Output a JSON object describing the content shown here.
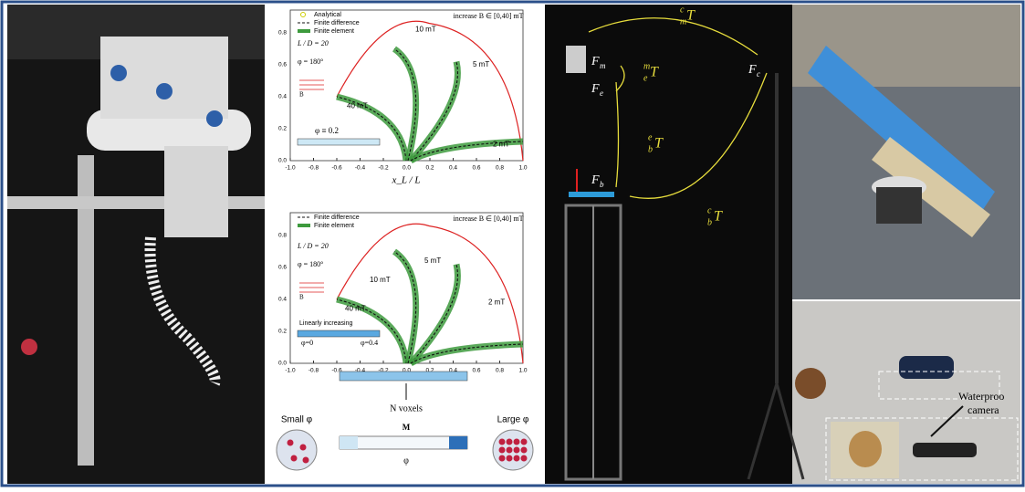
{
  "plots": [
    {
      "legend": [
        "Analytical",
        "Finite difference",
        "Finite element"
      ],
      "increase": "increase B ∈ [0,40] mT",
      "curve_labels": [
        "10 mT",
        "5 mT",
        "40 mT",
        "2 mT"
      ],
      "ratio": "L / D = 20",
      "angle": "φ = 180°",
      "field": "B",
      "phi": "φ ≡ 0.2",
      "x_label": "x_L / L",
      "x_ticks": [
        "-1.0",
        "-0.8",
        "-0.6",
        "-0.4",
        "-0.2",
        "0.0",
        "0.2",
        "0.4",
        "0.6",
        "0.8",
        "1.0"
      ],
      "y_ticks": [
        "0.0",
        "0.2",
        "0.4",
        "0.6",
        "0.8"
      ]
    },
    {
      "legend": [
        "Finite difference",
        "Finite element"
      ],
      "increase": "increase B ∈ [0,40] mT",
      "curve_labels": [
        "5 mT",
        "10 mT",
        "40 mT",
        "2 mT"
      ],
      "ratio": "L / D = 20",
      "angle": "φ = 180°",
      "field": "B",
      "profile": "Linearly increasing",
      "phi_start": "φ=0",
      "phi_end": "φ=0.4",
      "x_ticks": [
        "-1.0",
        "-0.8",
        "-0.6",
        "-0.4",
        "-0.2",
        "0.0",
        "0.2",
        "0.4",
        "0.6",
        "0.8",
        "1.0"
      ],
      "y_ticks": [
        "0.0",
        "0.2",
        "0.4",
        "0.6",
        "0.8"
      ]
    }
  ],
  "voxels": {
    "n": "N voxels",
    "small": "Small φ",
    "large": "Large φ",
    "m": "M",
    "phi": "φ"
  },
  "frames": [
    {
      "symbol": "F",
      "sub": "m"
    },
    {
      "symbol": "F",
      "sub": "e"
    },
    {
      "symbol": "F",
      "sub": "b"
    },
    {
      "symbol": "F",
      "sub": "c"
    }
  ],
  "transforms": [
    {
      "symbol": "T",
      "sup": "m",
      "sub": "e"
    },
    {
      "symbol": "T",
      "sup": "e",
      "sub": "b"
    },
    {
      "symbol": "T",
      "sup": "c",
      "sub": "m"
    },
    {
      "symbol": "T",
      "sup": "c",
      "sub": "b"
    }
  ],
  "camera_label": [
    "Waterproo",
    "camera"
  ]
}
